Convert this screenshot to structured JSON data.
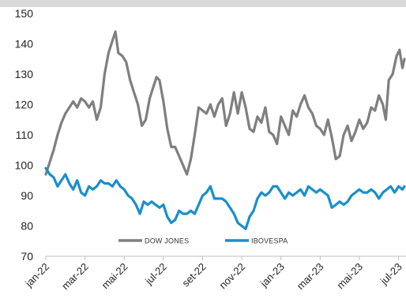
{
  "chart_data": {
    "type": "line",
    "title": "",
    "xlabel": "",
    "ylabel": "",
    "ylim": [
      70,
      150
    ],
    "yticks": [
      70,
      80,
      90,
      100,
      110,
      120,
      130,
      140,
      150
    ],
    "xtick_labels": [
      "jan-22",
      "mar-22",
      "mai-22",
      "jul-22",
      "set-22",
      "nov-22",
      "jan-23",
      "mar-23",
      "mai-23",
      "jul-23"
    ],
    "x_months": [
      0,
      2,
      4,
      6,
      8,
      10,
      12,
      14,
      16,
      18
    ],
    "x_range_months": [
      0,
      18.3
    ],
    "grid": false,
    "legend_position": "bottom-left",
    "series": [
      {
        "name": "DOW JONES",
        "color": "#7f7f7f",
        "points": [
          [
            0,
            97
          ],
          [
            0.2,
            101
          ],
          [
            0.4,
            105
          ],
          [
            0.6,
            110
          ],
          [
            0.8,
            114
          ],
          [
            1.0,
            117
          ],
          [
            1.2,
            119
          ],
          [
            1.4,
            121
          ],
          [
            1.6,
            119
          ],
          [
            1.8,
            122
          ],
          [
            2.0,
            121
          ],
          [
            2.2,
            119
          ],
          [
            2.4,
            121
          ],
          [
            2.6,
            115
          ],
          [
            2.8,
            119
          ],
          [
            3.0,
            130
          ],
          [
            3.2,
            137
          ],
          [
            3.4,
            141
          ],
          [
            3.55,
            144
          ],
          [
            3.7,
            137
          ],
          [
            3.9,
            136
          ],
          [
            4.1,
            134
          ],
          [
            4.3,
            128
          ],
          [
            4.5,
            124
          ],
          [
            4.7,
            120
          ],
          [
            4.9,
            113
          ],
          [
            5.1,
            115
          ],
          [
            5.3,
            122
          ],
          [
            5.5,
            126
          ],
          [
            5.65,
            129
          ],
          [
            5.8,
            128
          ],
          [
            6.0,
            121
          ],
          [
            6.2,
            112
          ],
          [
            6.4,
            106
          ],
          [
            6.6,
            106
          ],
          [
            6.8,
            103
          ],
          [
            7.0,
            100
          ],
          [
            7.2,
            97
          ],
          [
            7.4,
            102
          ],
          [
            7.6,
            110
          ],
          [
            7.8,
            119
          ],
          [
            8.0,
            118
          ],
          [
            8.2,
            117
          ],
          [
            8.4,
            120
          ],
          [
            8.6,
            116
          ],
          [
            8.8,
            120
          ],
          [
            9.0,
            122
          ],
          [
            9.2,
            113
          ],
          [
            9.4,
            117
          ],
          [
            9.6,
            124
          ],
          [
            9.8,
            117
          ],
          [
            10.0,
            124
          ],
          [
            10.2,
            119
          ],
          [
            10.4,
            112
          ],
          [
            10.6,
            111
          ],
          [
            10.8,
            116
          ],
          [
            11.0,
            114
          ],
          [
            11.2,
            119
          ],
          [
            11.4,
            111
          ],
          [
            11.6,
            110
          ],
          [
            11.8,
            107
          ],
          [
            12.0,
            116
          ],
          [
            12.2,
            113
          ],
          [
            12.4,
            110
          ],
          [
            12.6,
            118
          ],
          [
            12.8,
            116
          ],
          [
            13.0,
            120
          ],
          [
            13.2,
            123
          ],
          [
            13.4,
            119
          ],
          [
            13.6,
            117
          ],
          [
            13.8,
            113
          ],
          [
            14.0,
            112
          ],
          [
            14.2,
            110
          ],
          [
            14.4,
            115
          ],
          [
            14.6,
            109
          ],
          [
            14.8,
            102
          ],
          [
            15.0,
            103
          ],
          [
            15.2,
            110
          ],
          [
            15.4,
            113
          ],
          [
            15.6,
            108
          ],
          [
            15.8,
            111
          ],
          [
            16.0,
            115
          ],
          [
            16.2,
            112
          ],
          [
            16.4,
            114
          ],
          [
            16.6,
            119
          ],
          [
            16.8,
            118
          ],
          [
            17.0,
            123
          ],
          [
            17.2,
            120
          ],
          [
            17.35,
            115
          ],
          [
            17.5,
            128
          ],
          [
            17.7,
            130
          ],
          [
            17.9,
            136
          ],
          [
            18.05,
            138
          ],
          [
            18.2,
            132
          ],
          [
            18.3,
            135
          ]
        ]
      },
      {
        "name": "IBOVESPA",
        "color": "#1a8fc9",
        "points": [
          [
            0,
            99
          ],
          [
            0.2,
            97
          ],
          [
            0.4,
            96
          ],
          [
            0.6,
            93
          ],
          [
            0.8,
            95
          ],
          [
            1.0,
            97
          ],
          [
            1.2,
            94
          ],
          [
            1.4,
            92
          ],
          [
            1.6,
            95
          ],
          [
            1.8,
            91
          ],
          [
            2.0,
            90
          ],
          [
            2.2,
            93
          ],
          [
            2.4,
            92
          ],
          [
            2.6,
            93
          ],
          [
            2.8,
            95
          ],
          [
            3.0,
            94
          ],
          [
            3.2,
            94
          ],
          [
            3.4,
            93
          ],
          [
            3.6,
            95
          ],
          [
            3.8,
            93
          ],
          [
            4.0,
            92
          ],
          [
            4.2,
            90
          ],
          [
            4.4,
            89
          ],
          [
            4.6,
            87
          ],
          [
            4.8,
            84
          ],
          [
            5.0,
            88
          ],
          [
            5.2,
            87
          ],
          [
            5.4,
            88
          ],
          [
            5.6,
            87
          ],
          [
            5.8,
            86
          ],
          [
            6.0,
            87
          ],
          [
            6.2,
            83
          ],
          [
            6.4,
            81
          ],
          [
            6.6,
            82
          ],
          [
            6.8,
            85
          ],
          [
            7.0,
            84
          ],
          [
            7.2,
            84
          ],
          [
            7.4,
            85
          ],
          [
            7.6,
            84
          ],
          [
            7.8,
            87
          ],
          [
            8.0,
            90
          ],
          [
            8.2,
            91
          ],
          [
            8.4,
            93
          ],
          [
            8.6,
            89
          ],
          [
            8.8,
            89
          ],
          [
            9.0,
            89
          ],
          [
            9.2,
            88
          ],
          [
            9.4,
            86
          ],
          [
            9.6,
            84
          ],
          [
            9.8,
            81
          ],
          [
            10.0,
            80
          ],
          [
            10.2,
            79
          ],
          [
            10.4,
            83
          ],
          [
            10.6,
            85
          ],
          [
            10.8,
            89
          ],
          [
            11.0,
            91
          ],
          [
            11.2,
            90
          ],
          [
            11.4,
            91
          ],
          [
            11.6,
            93
          ],
          [
            11.8,
            93
          ],
          [
            12.0,
            91
          ],
          [
            12.2,
            89
          ],
          [
            12.4,
            91
          ],
          [
            12.6,
            90
          ],
          [
            12.8,
            91
          ],
          [
            13.0,
            92
          ],
          [
            13.2,
            90
          ],
          [
            13.4,
            93
          ],
          [
            13.6,
            92
          ],
          [
            13.8,
            91
          ],
          [
            14.0,
            92
          ],
          [
            14.2,
            91
          ],
          [
            14.4,
            90
          ],
          [
            14.6,
            86
          ],
          [
            14.8,
            87
          ],
          [
            15.0,
            88
          ],
          [
            15.2,
            87
          ],
          [
            15.4,
            88
          ],
          [
            15.6,
            90
          ],
          [
            15.8,
            91
          ],
          [
            16.0,
            92
          ],
          [
            16.2,
            91
          ],
          [
            16.4,
            91
          ],
          [
            16.6,
            92
          ],
          [
            16.8,
            91
          ],
          [
            17.0,
            89
          ],
          [
            17.2,
            91
          ],
          [
            17.4,
            92
          ],
          [
            17.6,
            93
          ],
          [
            17.8,
            91
          ],
          [
            18.0,
            93
          ],
          [
            18.2,
            92
          ],
          [
            18.3,
            93
          ]
        ]
      }
    ]
  }
}
